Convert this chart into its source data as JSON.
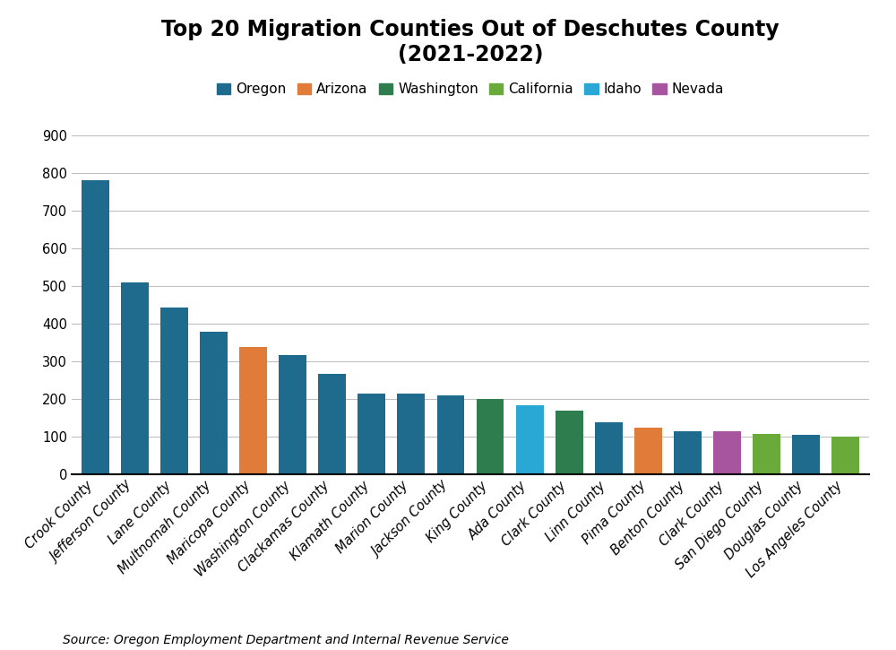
{
  "title": "Top 20 Migration Counties Out of Deschutes County\n(2021-2022)",
  "source": "Source: Oregon Employment Department and Internal Revenue Service",
  "categories": [
    "Crook County",
    "Jefferson County",
    "Lane County",
    "Multnomah County",
    "Maricopa County",
    "Washington County",
    "Clackamas County",
    "Klamath County",
    "Marion County",
    "Jackson County",
    "King County",
    "Ada County",
    "Clark County",
    "Linn County",
    "Pima County",
    "Benton County",
    "Clark County",
    "San Diego County",
    "Douglas County",
    "Los Angeles County"
  ],
  "values": [
    783,
    510,
    443,
    379,
    340,
    318,
    268,
    215,
    214,
    211,
    200,
    183,
    169,
    139,
    125,
    115,
    116,
    108,
    105,
    101
  ],
  "colors": [
    "#1f6b8e",
    "#1f6b8e",
    "#1f6b8e",
    "#1f6b8e",
    "#e07b39",
    "#1f6b8e",
    "#1f6b8e",
    "#1f6b8e",
    "#1f6b8e",
    "#1f6b8e",
    "#2e7d4f",
    "#29a8d6",
    "#2e7d4f",
    "#1f6b8e",
    "#e07b39",
    "#1f6b8e",
    "#a855a0",
    "#6aaa3a",
    "#1f6b8e",
    "#6aaa3a"
  ],
  "legend_entries": [
    {
      "label": "Oregon",
      "color": "#1f6b8e"
    },
    {
      "label": "Arizona",
      "color": "#e07b39"
    },
    {
      "label": "Washington",
      "color": "#2e7d4f"
    },
    {
      "label": "California",
      "color": "#6aaa3a"
    },
    {
      "label": "Idaho",
      "color": "#29a8d6"
    },
    {
      "label": "Nevada",
      "color": "#a855a0"
    }
  ],
  "ylim": [
    0,
    950
  ],
  "yticks": [
    0,
    100,
    200,
    300,
    400,
    500,
    600,
    700,
    800,
    900
  ],
  "ylabel": "",
  "xlabel": "",
  "title_fontsize": 17,
  "tick_fontsize": 10.5,
  "legend_fontsize": 11,
  "source_fontsize": 10,
  "background_color": "#ffffff"
}
